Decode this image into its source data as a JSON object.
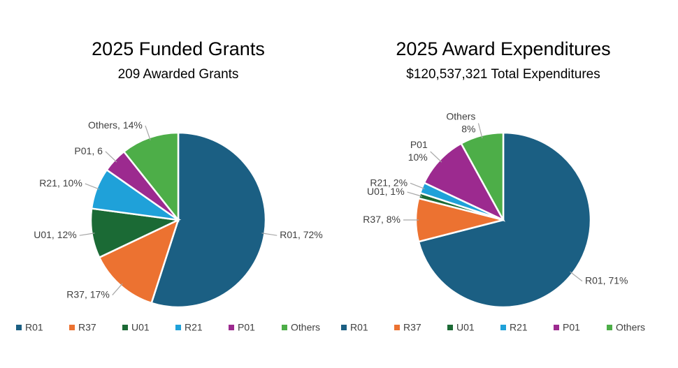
{
  "chart_data": [
    {
      "type": "pie",
      "title": "2025 Funded Grants",
      "subtitle": "209 Awarded Grants",
      "categories": [
        "R01",
        "R37",
        "U01",
        "R21",
        "P01",
        "Others"
      ],
      "values": [
        72,
        17,
        12,
        10,
        6,
        14
      ],
      "value_labels": [
        "R01, 72%",
        "R37, 17%",
        "U01, 12%",
        "R21, 10%",
        "P01, 6",
        "Others, 14%"
      ],
      "colors": [
        "#1b5f83",
        "#ec7231",
        "#1b6a35",
        "#1fa1d9",
        "#9c2a8f",
        "#4dae48"
      ],
      "legend": "bottom"
    },
    {
      "type": "pie",
      "title": "2025 Award Expenditures",
      "subtitle": "$120,537,321 Total Expenditures",
      "categories": [
        "R01",
        "R37",
        "U01",
        "R21",
        "P01",
        "Others"
      ],
      "values": [
        71,
        8,
        1,
        2,
        10,
        8
      ],
      "value_labels": [
        "R01, 71%",
        "R37, 8%",
        "U01, 1%",
        "R21, 2%",
        "P01\n10%",
        "Others\n8%"
      ],
      "colors": [
        "#1b5f83",
        "#ec7231",
        "#1b6a35",
        "#1fa1d9",
        "#9c2a8f",
        "#4dae48"
      ],
      "legend": "bottom"
    }
  ]
}
